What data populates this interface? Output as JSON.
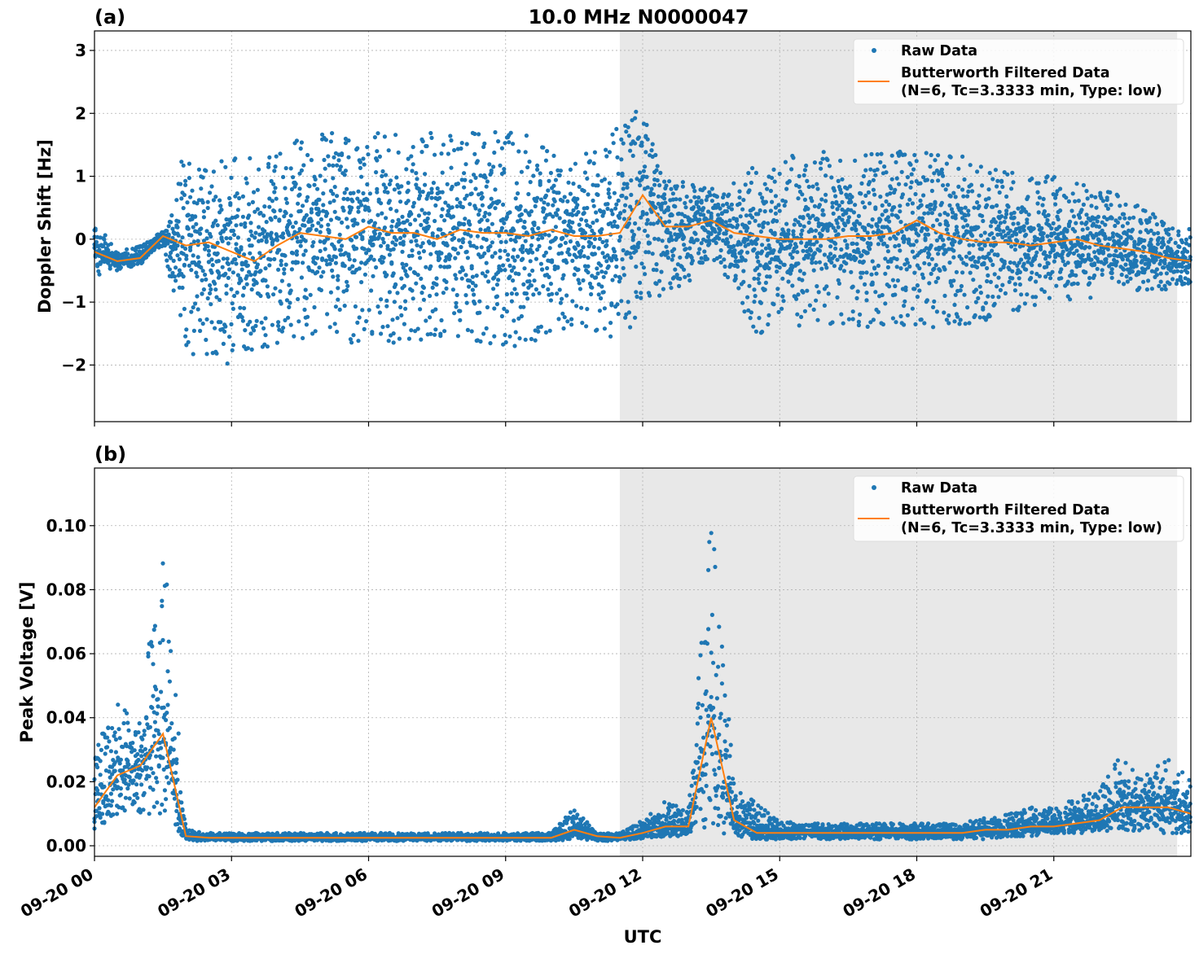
{
  "title": "10.0 MHz N0000047",
  "xlabel": "UTC",
  "colors": {
    "raw": "#1f77b4",
    "filtered": "#ff7f0e",
    "shade": "#e8e8e8",
    "grid": "#b0b0b0"
  },
  "legend": {
    "raw": "Raw Data",
    "filtered_line1": "Butterworth Filtered Data",
    "filtered_line2": "(N=6, Tc=3.3333 min, Type: low)",
    "placement": "upper right"
  },
  "x_tick_labels": [
    "09-20 00",
    "09-20 03",
    "09-20 06",
    "09-20 09",
    "09-20 12",
    "09-20 15",
    "09-20 18",
    "09-20 21"
  ],
  "chart_data": [
    {
      "type": "scatter+line",
      "panel_label": "(a)",
      "ylabel": "Doppler Shift [Hz]",
      "xlim_hours_utc": [
        0,
        24
      ],
      "ylim": [
        -2.9,
        3.31
      ],
      "yticks": [
        -2,
        -1,
        0,
        1,
        2,
        3
      ],
      "ytick_labels": [
        "−2",
        "−1",
        "0",
        "1",
        "2",
        "3"
      ],
      "grid": true,
      "shaded_span_hours_utc": [
        11.5,
        23.7
      ],
      "x_hours_utc": [
        0,
        0.5,
        1,
        1.5,
        2,
        2.5,
        3,
        3.5,
        4,
        4.5,
        5,
        5.5,
        6,
        6.5,
        7,
        7.5,
        8,
        8.5,
        9,
        9.5,
        10,
        10.5,
        11,
        11.5,
        12,
        12.5,
        13,
        13.5,
        14,
        14.5,
        15,
        15.5,
        16,
        16.5,
        17,
        17.5,
        18,
        18.5,
        19,
        19.5,
        20,
        20.5,
        21,
        21.5,
        22,
        22.5,
        23,
        23.5,
        24
      ],
      "filtered": [
        -0.2,
        -0.35,
        -0.3,
        0.05,
        -0.1,
        -0.05,
        -0.2,
        -0.35,
        -0.1,
        0.1,
        0.05,
        0,
        0.2,
        0.1,
        0.1,
        0,
        0.15,
        0.1,
        0.1,
        0.05,
        0.15,
        0.05,
        0.05,
        0.1,
        0.7,
        0.2,
        0.2,
        0.3,
        0.1,
        0.05,
        0,
        0,
        0,
        0.05,
        0.05,
        0.1,
        0.3,
        0.1,
        0,
        -0.05,
        -0.05,
        -0.1,
        -0.05,
        0,
        -0.1,
        -0.15,
        -0.2,
        -0.3,
        -0.35
      ],
      "raw_envelope_low": [
        -0.6,
        -0.5,
        -0.4,
        -0.1,
        -1.8,
        -1.9,
        -2.0,
        -1.8,
        -1.7,
        -1.6,
        -1.6,
        -1.7,
        -1.7,
        -1.7,
        -1.7,
        -1.7,
        -1.7,
        -1.7,
        -1.7,
        -1.7,
        -1.7,
        -1.4,
        -1.5,
        -1.6,
        -1.2,
        -0.8,
        -0.9,
        -0.3,
        -0.8,
        -1.6,
        -1.3,
        -1.4,
        -1.4,
        -1.4,
        -1.4,
        -1.4,
        -1.4,
        -1.4,
        -1.4,
        -1.3,
        -1.2,
        -1.1,
        -1.0,
        -1.0,
        -0.9,
        -0.85,
        -0.8,
        -0.8,
        -0.7
      ],
      "raw_envelope_high": [
        0.3,
        -0.2,
        -0.1,
        0.15,
        1.5,
        1.4,
        1.3,
        1.3,
        1.4,
        1.6,
        1.7,
        1.7,
        1.7,
        1.7,
        1.7,
        1.7,
        1.7,
        1.7,
        1.7,
        1.7,
        1.7,
        1.3,
        1.5,
        1.8,
        2.2,
        1.0,
        0.9,
        0.8,
        1.0,
        1.2,
        1.3,
        1.4,
        1.4,
        1.4,
        1.4,
        1.4,
        1.4,
        1.4,
        1.4,
        1.2,
        1.1,
        1.05,
        1.0,
        0.9,
        0.8,
        0.7,
        0.5,
        0.3,
        0.2
      ]
    },
    {
      "type": "scatter+line",
      "panel_label": "(b)",
      "ylabel": "Peak Voltage [V]",
      "xlim_hours_utc": [
        0,
        24
      ],
      "ylim": [
        -0.0033,
        0.118
      ],
      "yticks": [
        0,
        0.02,
        0.04,
        0.06,
        0.08,
        0.1
      ],
      "ytick_labels": [
        "0.00",
        "0.02",
        "0.04",
        "0.06",
        "0.08",
        "0.10"
      ],
      "grid": true,
      "shaded_span_hours_utc": [
        11.5,
        23.7
      ],
      "x_hours_utc": [
        0,
        0.5,
        1,
        1.5,
        2,
        2.5,
        3,
        3.5,
        4,
        4.5,
        5,
        5.5,
        6,
        6.5,
        7,
        7.5,
        8,
        8.5,
        9,
        9.5,
        10,
        10.5,
        11,
        11.5,
        12,
        12.5,
        13,
        13.5,
        14,
        14.5,
        15,
        15.5,
        16,
        16.5,
        17,
        17.5,
        18,
        18.5,
        19,
        19.5,
        20,
        20.5,
        21,
        21.5,
        22,
        22.5,
        23,
        23.5,
        24
      ],
      "filtered": [
        0.012,
        0.022,
        0.025,
        0.035,
        0.003,
        0.0025,
        0.0025,
        0.0025,
        0.0025,
        0.0025,
        0.0025,
        0.0025,
        0.0025,
        0.0025,
        0.0025,
        0.0025,
        0.0025,
        0.0025,
        0.0025,
        0.0025,
        0.0025,
        0.005,
        0.003,
        0.0025,
        0.004,
        0.006,
        0.006,
        0.04,
        0.008,
        0.004,
        0.004,
        0.004,
        0.004,
        0.004,
        0.004,
        0.004,
        0.004,
        0.004,
        0.004,
        0.005,
        0.005,
        0.006,
        0.006,
        0.007,
        0.008,
        0.012,
        0.012,
        0.012,
        0.01
      ],
      "raw_envelope_low": [
        0.005,
        0.01,
        0.01,
        0.01,
        0.0015,
        0.0015,
        0.0015,
        0.0015,
        0.0015,
        0.0015,
        0.0015,
        0.0015,
        0.0015,
        0.0015,
        0.0015,
        0.0015,
        0.0015,
        0.0015,
        0.0015,
        0.0015,
        0.0015,
        0.002,
        0.0015,
        0.0015,
        0.002,
        0.003,
        0.003,
        0.005,
        0.003,
        0.002,
        0.002,
        0.002,
        0.002,
        0.002,
        0.002,
        0.002,
        0.002,
        0.002,
        0.002,
        0.002,
        0.003,
        0.003,
        0.004,
        0.004,
        0.004,
        0.005,
        0.004,
        0.004,
        0.004
      ],
      "raw_envelope_high": [
        0.03,
        0.045,
        0.04,
        0.1,
        0.005,
        0.004,
        0.004,
        0.004,
        0.004,
        0.004,
        0.004,
        0.004,
        0.004,
        0.004,
        0.004,
        0.004,
        0.004,
        0.004,
        0.004,
        0.004,
        0.004,
        0.012,
        0.004,
        0.004,
        0.008,
        0.014,
        0.012,
        0.106,
        0.02,
        0.013,
        0.008,
        0.007,
        0.007,
        0.007,
        0.007,
        0.007,
        0.007,
        0.007,
        0.007,
        0.009,
        0.01,
        0.012,
        0.012,
        0.015,
        0.018,
        0.03,
        0.022,
        0.028,
        0.02
      ]
    }
  ]
}
